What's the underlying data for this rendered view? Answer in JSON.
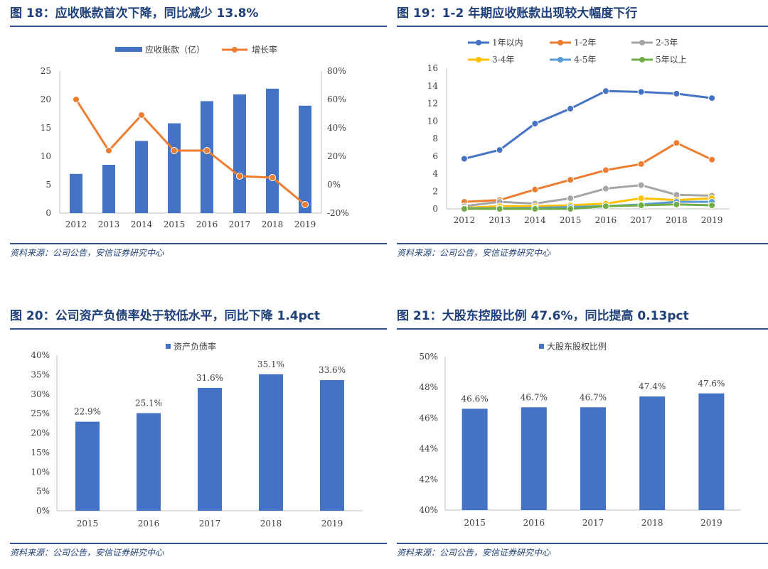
{
  "charts": [
    {
      "title": "图 18：应收账款首次下降，同比减少 13.8%",
      "source": "资料来源：公司公告，安信证券研究中心",
      "chart_data": {
        "type": "bar+line",
        "categories": [
          "2012",
          "2013",
          "2014",
          "2015",
          "2016",
          "2017",
          "2018",
          "2019"
        ],
        "series": [
          {
            "name": "应收账款（亿）",
            "type": "bar",
            "axis": "left",
            "color": "#4472c4",
            "values": [
              6.9,
              8.5,
              12.7,
              15.8,
              19.7,
              20.9,
              21.9,
              18.9
            ]
          },
          {
            "name": "增长率",
            "type": "line",
            "axis": "right",
            "color": "#ed7d31",
            "values": [
              60,
              24,
              49,
              24,
              24,
              6,
              5,
              -14
            ]
          }
        ],
        "ylim_left": [
          0,
          25
        ],
        "yticks_left": [
          "0",
          "5",
          "10",
          "15",
          "20",
          "25"
        ],
        "ylim_right": [
          -20,
          80
        ],
        "yticks_right": [
          "-20%",
          "0%",
          "20%",
          "40%",
          "60%",
          "80%"
        ],
        "legend": "top"
      }
    },
    {
      "title": "图 19：1-2 年期应收账款出现较大幅度下行",
      "source": "资料来源：公司公告，安信证券研究中心",
      "chart_data": {
        "type": "line",
        "categories": [
          "2012",
          "2013",
          "2014",
          "2015",
          "2016",
          "2017",
          "2018",
          "2019"
        ],
        "series": [
          {
            "name": "1年以内",
            "color": "#4472c4",
            "values": [
              5.7,
              6.7,
              9.7,
              11.4,
              13.4,
              13.3,
              13.1,
              12.6
            ]
          },
          {
            "name": "1-2年",
            "color": "#ed7d31",
            "values": [
              0.8,
              1.0,
              2.2,
              3.3,
              4.4,
              5.1,
              7.5,
              5.6
            ]
          },
          {
            "name": "2-3年",
            "color": "#a5a5a5",
            "values": [
              0.3,
              0.8,
              0.6,
              1.2,
              2.3,
              2.7,
              1.6,
              1.5
            ]
          },
          {
            "name": "3-4年",
            "color": "#ffc000",
            "values": [
              0.1,
              0.3,
              0.3,
              0.4,
              0.6,
              1.2,
              1.0,
              1.2
            ]
          },
          {
            "name": "4-5年",
            "color": "#5b9bd5",
            "values": [
              0.05,
              0.05,
              0.1,
              0.2,
              0.3,
              0.5,
              0.8,
              0.8
            ]
          },
          {
            "name": "5年以上",
            "color": "#70ad47",
            "values": [
              0.0,
              0.0,
              0.0,
              0.0,
              0.3,
              0.4,
              0.5,
              0.4
            ]
          }
        ],
        "ylim": [
          0,
          16
        ],
        "yticks": [
          "0",
          "2",
          "4",
          "6",
          "8",
          "10",
          "12",
          "14",
          "16"
        ],
        "legend": "top"
      }
    },
    {
      "title": "图 20：公司资产负债率处于较低水平，同比下降 1.4pct",
      "source": "资料来源：公司公告，安信证券研究中心",
      "chart_data": {
        "type": "bar",
        "categories": [
          "2015",
          "2016",
          "2017",
          "2018",
          "2019"
        ],
        "series": [
          {
            "name": "资产负债率",
            "color": "#4472c4",
            "values": [
              22.9,
              25.1,
              31.6,
              35.1,
              33.6
            ]
          }
        ],
        "data_labels": [
          "22.9%",
          "25.1%",
          "31.6%",
          "35.1%",
          "33.6%"
        ],
        "ylim": [
          0,
          40
        ],
        "yticks": [
          "0%",
          "5%",
          "10%",
          "15%",
          "20%",
          "25%",
          "30%",
          "35%",
          "40%"
        ],
        "legend": "top"
      }
    },
    {
      "title": "图 21：大股东控股比例 47.6%，同比提高 0.13pct",
      "source": "资料来源：公司公告，安信证券研究中心",
      "chart_data": {
        "type": "bar",
        "categories": [
          "2015",
          "2016",
          "2017",
          "2018",
          "2019"
        ],
        "series": [
          {
            "name": "大股东股权比例",
            "color": "#4472c4",
            "values": [
              46.6,
              46.7,
              46.7,
              47.4,
              47.6
            ]
          }
        ],
        "data_labels": [
          "46.6%",
          "46.7%",
          "46.7%",
          "47.4%",
          "47.6%"
        ],
        "ylim": [
          40,
          50
        ],
        "yticks": [
          "40%",
          "42%",
          "44%",
          "46%",
          "48%",
          "50%"
        ],
        "legend": "top"
      }
    }
  ]
}
